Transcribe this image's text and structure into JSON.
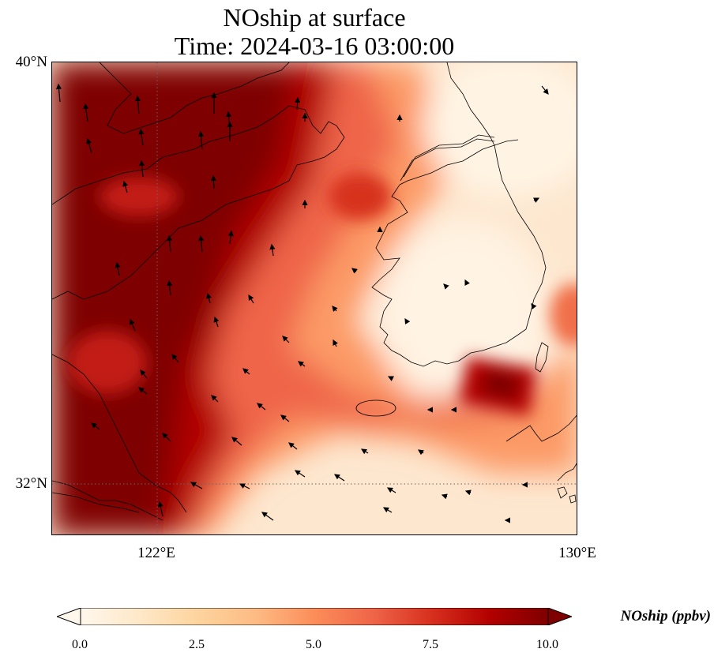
{
  "title_line1": "NOship at surface",
  "title_line2": "Time: 2024-03-16 03:00:00",
  "lat_labels": {
    "north": "40°N",
    "south": "32°N"
  },
  "lon_labels": {
    "west": "122°E",
    "east": "130°E"
  },
  "colorbar": {
    "label": "NOship (ppbv)",
    "ticks": [
      "0.0",
      "2.5",
      "5.0",
      "7.5",
      "10.0"
    ],
    "colormap": "OrRd",
    "range": [
      0,
      10
    ],
    "extend": "both",
    "colors": [
      "#fff7ec",
      "#fee8c8",
      "#fdd49e",
      "#fdbb84",
      "#fc8d59",
      "#ef6548",
      "#d7301f",
      "#b30000",
      "#7f0000"
    ]
  },
  "chart_data": {
    "type": "heatmap",
    "projection": "PlateCarree",
    "lon_range": [
      120,
      130
    ],
    "lat_range": [
      31,
      40
    ],
    "gridlines": {
      "lon": [
        122
      ],
      "lat": [
        32
      ],
      "style": "dotted"
    },
    "features": [
      "coastlines",
      "wind-vectors"
    ],
    "high_regions": [
      {
        "area": "Yellow Sea west coast / Shandong–Jiangsu",
        "value": ">10"
      },
      {
        "area": "South of Korean peninsula near 34°N 128.5°E",
        "value": ">10"
      }
    ],
    "low_regions": [
      {
        "area": "Korean peninsula interior",
        "value": "0–1"
      },
      {
        "area": "Northeast corner (East Sea coast)",
        "value": "0–1"
      }
    ]
  }
}
